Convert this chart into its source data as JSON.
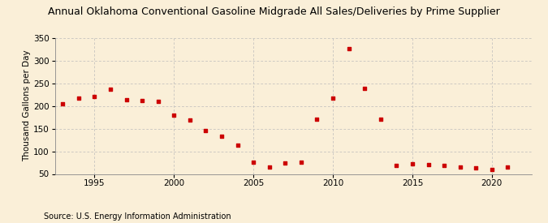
{
  "title": "Annual Oklahoma Conventional Gasoline Midgrade All Sales/Deliveries by Prime Supplier",
  "ylabel": "Thousand Gallons per Day",
  "source": "Source: U.S. Energy Information Administration",
  "background_color": "#faefd8",
  "marker_color": "#cc0000",
  "years": [
    1993,
    1994,
    1995,
    1996,
    1997,
    1998,
    1999,
    2000,
    2001,
    2002,
    2003,
    2004,
    2005,
    2006,
    2007,
    2008,
    2009,
    2010,
    2011,
    2012,
    2013,
    2014,
    2015,
    2016,
    2017,
    2018,
    2019,
    2020,
    2021
  ],
  "values": [
    205,
    217,
    221,
    237,
    214,
    212,
    210,
    180,
    169,
    146,
    133,
    113,
    76,
    65,
    74,
    76,
    170,
    218,
    327,
    239,
    171,
    68,
    72,
    71,
    68,
    65,
    64,
    60,
    65
  ],
  "xlim": [
    1992.5,
    2022.5
  ],
  "ylim": [
    50,
    350
  ],
  "yticks": [
    50,
    100,
    150,
    200,
    250,
    300,
    350
  ],
  "xticks": [
    1995,
    2000,
    2005,
    2010,
    2015,
    2020
  ],
  "grid_color": "#bbbbbb",
  "title_fontsize": 9.0,
  "label_fontsize": 7.5,
  "tick_fontsize": 7.5,
  "source_fontsize": 7.0
}
